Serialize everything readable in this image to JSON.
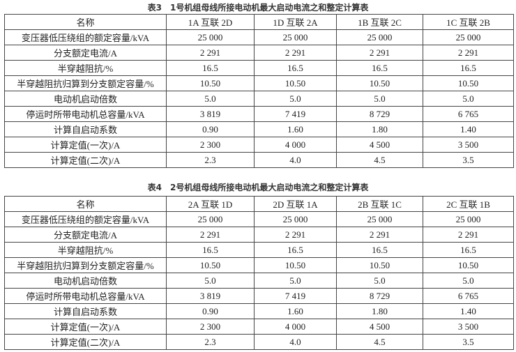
{
  "tables": [
    {
      "title": "表3　1号机组母线所接电动机最大启动电流之和整定计算表",
      "header": [
        "名称",
        "1A 互联 2D",
        "1D 互联 2A",
        "1B 互联 2C",
        "1C 互联 2B"
      ],
      "rows": [
        [
          "变压器低压绕组的额定容量/kVA",
          "25 000",
          "25 000",
          "25 000",
          "25 000"
        ],
        [
          "分支额定电流/A",
          "2 291",
          "2 291",
          "2 291",
          "2 291"
        ],
        [
          "半穿越阻抗/%",
          "16.5",
          "16.5",
          "16.5",
          "16.5"
        ],
        [
          "半穿越阻抗归算到分支额定容量/%",
          "10.50",
          "10.50",
          "10.50",
          "10.50"
        ],
        [
          "电动机启动倍数",
          "5.0",
          "5.0",
          "5.0",
          "5.0"
        ],
        [
          "停运时所带电动机总容量/kVA",
          "3 819",
          "7 419",
          "8 729",
          "6 765"
        ],
        [
          "计算自启动系数",
          "0.90",
          "1.60",
          "1.80",
          "1.40"
        ],
        [
          "计算定值(一次)/A",
          "2 300",
          "4 000",
          "4 500",
          "3 500"
        ],
        [
          "计算定值(二次)/A",
          "2.3",
          "4.0",
          "4.5",
          "3.5"
        ]
      ]
    },
    {
      "title": "表4　2号机组母线所接电动机最大启动电流之和整定计算表",
      "header": [
        "名称",
        "2A 互联 1D",
        "2D 互联 1A",
        "2B 互联 1C",
        "2C 互联 1B"
      ],
      "rows": [
        [
          "变压器低压绕组的额定容量/kVA",
          "25 000",
          "25 000",
          "25 000",
          "25 000"
        ],
        [
          "分支额定电流/A",
          "2 291",
          "2 291",
          "2 291",
          "2 291"
        ],
        [
          "半穿越阻抗/%",
          "16.5",
          "16.5",
          "16.5",
          "16.5"
        ],
        [
          "半穿越阻抗归算到分支额定容量/%",
          "10.50",
          "10.50",
          "10.50",
          "10.50"
        ],
        [
          "电动机启动倍数",
          "5.0",
          "5.0",
          "5.0",
          "5.0"
        ],
        [
          "停运时所带电动机总容量/kVA",
          "3 819",
          "7 419",
          "8 729",
          "6 765"
        ],
        [
          "计算自启动系数",
          "0.90",
          "1.60",
          "1.80",
          "1.40"
        ],
        [
          "计算定值(一次)/A",
          "2 300",
          "4 000",
          "4 500",
          "3 500"
        ],
        [
          "计算定值(二次)/A",
          "2.3",
          "4.0",
          "4.5",
          "3.5"
        ]
      ]
    }
  ]
}
